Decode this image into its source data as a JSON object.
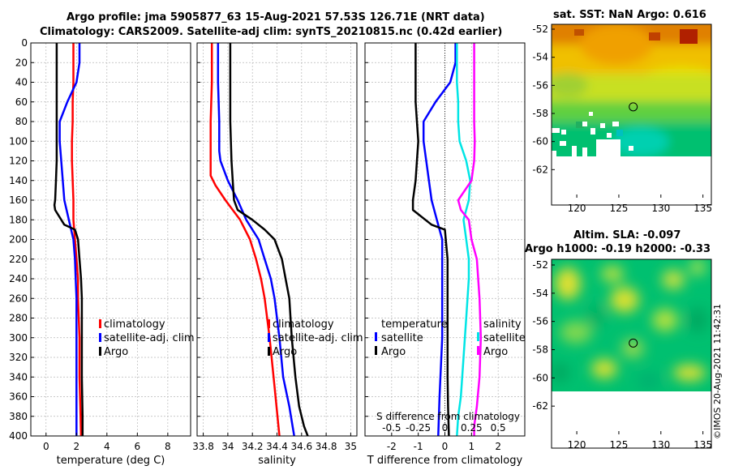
{
  "header": {
    "title_line1": "Argo profile: jma 5905877_63 15-Aug-2021 57.53S 126.71E (NRT data)",
    "title_line2": "Climatology: CARS2009. Satellite-adj clim: synTS_20210815.nc (0.42d earlier)"
  },
  "map_titles": {
    "sst_title": "sat. SST: NaN Argo: 0.616",
    "sla_title_line1": "Altim. SLA: -0.097",
    "sla_title_line2": "Argo h1000: -0.19 h2000: -0.33"
  },
  "stamp": "©IMOS 20-Aug-2021 11:42:31",
  "colors": {
    "climatology": "#ff0000",
    "satellite": "#0000ff",
    "argo": "#000000",
    "salinity_satellite": "#00e5e5",
    "salinity_argo": "#ff00ff"
  },
  "chart_data": [
    {
      "type": "line",
      "name": "temperature",
      "xlabel": "temperature (deg C)",
      "ylabel": "",
      "xlim": [
        -1,
        9.5
      ],
      "ylim": [
        400,
        0
      ],
      "xticks": [
        0,
        2,
        4,
        6,
        8
      ],
      "xtick_labels": [
        "0",
        "2",
        "4",
        "6",
        "8"
      ],
      "yticks": [
        0,
        20,
        40,
        60,
        80,
        100,
        120,
        140,
        160,
        180,
        200,
        220,
        240,
        260,
        280,
        300,
        320,
        340,
        360,
        380,
        400
      ],
      "ytick_labels": [
        "0",
        "20",
        "40",
        "60",
        "80",
        "100",
        "120",
        "140",
        "160",
        "180",
        "200",
        "220",
        "240",
        "260",
        "280",
        "300",
        "320",
        "340",
        "360",
        "380",
        "400"
      ],
      "legend": [
        "climatology",
        "satellite-adj. clim",
        "Argo"
      ],
      "series": [
        {
          "name": "climatology",
          "x": [
            1.8,
            1.8,
            1.8,
            1.75,
            1.75,
            1.7,
            1.7,
            1.75,
            1.8,
            1.8,
            1.9,
            2.0,
            2.1,
            2.1,
            2.2,
            2.2,
            2.25,
            2.3
          ],
          "y": [
            0,
            20,
            40,
            60,
            80,
            100,
            120,
            140,
            160,
            180,
            200,
            220,
            240,
            260,
            300,
            340,
            370,
            400
          ]
        },
        {
          "name": "satellite-adj. clim",
          "x": [
            2.2,
            2.2,
            2.0,
            1.4,
            0.9,
            0.9,
            1.0,
            1.1,
            1.2,
            1.5,
            1.8,
            1.9,
            1.95,
            2.0,
            2.0,
            2.0,
            2.0
          ],
          "y": [
            0,
            20,
            40,
            60,
            80,
            100,
            120,
            140,
            160,
            180,
            200,
            220,
            240,
            260,
            300,
            360,
            400
          ]
        },
        {
          "name": "Argo",
          "x": [
            0.7,
            0.7,
            0.7,
            0.7,
            0.7,
            0.65,
            0.6,
            0.55,
            0.6,
            1.2,
            1.9,
            2.1,
            2.2,
            2.3,
            2.35,
            2.35,
            2.35,
            2.4,
            2.4
          ],
          "y": [
            0,
            20,
            60,
            100,
            120,
            140,
            160,
            165,
            170,
            185,
            190,
            200,
            220,
            240,
            260,
            300,
            340,
            380,
            400
          ]
        }
      ]
    },
    {
      "type": "line",
      "name": "salinity",
      "xlabel": "salinity",
      "ylabel": "",
      "xlim": [
        33.75,
        35.05
      ],
      "ylim": [
        400,
        0
      ],
      "xticks": [
        33.8,
        34,
        34.2,
        34.4,
        34.6,
        34.8,
        35
      ],
      "xtick_labels": [
        "33.8",
        "34",
        "34.2",
        "34.4",
        "34.6",
        "34.8",
        "35"
      ],
      "legend": [
        "climatology",
        "satellite-adj. clim",
        "Argo"
      ],
      "series": [
        {
          "name": "climatology",
          "x": [
            33.87,
            33.87,
            33.86,
            33.86,
            33.86,
            33.86,
            33.86,
            33.9,
            33.98,
            34.1,
            34.18,
            34.23,
            34.27,
            34.3,
            34.34,
            34.38,
            34.42
          ],
          "y": [
            0,
            40,
            80,
            100,
            120,
            130,
            135,
            145,
            160,
            180,
            200,
            220,
            240,
            260,
            300,
            350,
            400
          ]
        },
        {
          "name": "satellite-adj. clim",
          "x": [
            33.92,
            33.92,
            33.93,
            33.93,
            33.93,
            33.94,
            34.0,
            34.08,
            34.15,
            34.25,
            34.3,
            34.35,
            34.38,
            34.42,
            34.45,
            34.5,
            34.54
          ],
          "y": [
            0,
            40,
            80,
            100,
            110,
            120,
            140,
            160,
            180,
            200,
            220,
            240,
            260,
            300,
            340,
            370,
            400
          ]
        },
        {
          "name": "Argo",
          "x": [
            34.02,
            34.02,
            34.02,
            34.03,
            34.04,
            34.05,
            34.08,
            34.2,
            34.3,
            34.38,
            34.44,
            34.47,
            34.5,
            34.52,
            34.55,
            34.58,
            34.62,
            34.65
          ],
          "y": [
            0,
            40,
            80,
            120,
            140,
            160,
            170,
            180,
            190,
            200,
            220,
            240,
            260,
            300,
            340,
            370,
            390,
            400
          ]
        }
      ]
    },
    {
      "type": "line",
      "name": "difference",
      "xlabel": "T difference from climatology",
      "xlabel_top": "S difference from climatology",
      "ylabel": "",
      "xlim": [
        -3,
        3
      ],
      "ylim": [
        400,
        0
      ],
      "xticks": [
        -2,
        -1,
        0,
        1,
        2
      ],
      "xtick_labels": [
        "-2",
        "-1",
        "0",
        "1",
        "2"
      ],
      "s_xticks": [
        -2,
        -1,
        0,
        1,
        2
      ],
      "s_xtick_labels": [
        "-0.5",
        "-0.25",
        "0",
        "0.25",
        "0.5"
      ],
      "legend_temperature": [
        "temperature",
        "satellite",
        "Argo"
      ],
      "legend_salinity": [
        "salinity",
        "satellite",
        "Argo"
      ],
      "series": [
        {
          "name": "temperature satellite",
          "x": [
            0.4,
            0.4,
            0.2,
            -0.35,
            -0.8,
            -0.8,
            -0.7,
            -0.6,
            -0.5,
            -0.3,
            -0.1,
            -0.1,
            -0.1,
            -0.1,
            -0.1,
            -0.2,
            -0.25
          ],
          "y": [
            0,
            20,
            40,
            60,
            80,
            100,
            120,
            140,
            160,
            180,
            200,
            220,
            240,
            260,
            300,
            360,
            400
          ]
        },
        {
          "name": "temperature Argo",
          "x": [
            -1.1,
            -1.1,
            -1.1,
            -1.05,
            -1.0,
            -1.05,
            -1.1,
            -1.2,
            -1.2,
            -0.5,
            0.0,
            0.1,
            0.1,
            0.1,
            0.1,
            0.12,
            0.15
          ],
          "y": [
            0,
            20,
            60,
            80,
            100,
            120,
            140,
            160,
            170,
            185,
            190,
            220,
            260,
            300,
            340,
            370,
            400
          ]
        },
        {
          "name": "salinity satellite",
          "x": [
            0.45,
            0.45,
            0.5,
            0.5,
            0.55,
            0.8,
            0.95,
            0.9,
            0.7,
            0.8,
            0.9,
            0.9,
            0.8,
            0.7,
            0.6,
            0.5,
            0.45
          ],
          "y": [
            0,
            40,
            60,
            80,
            100,
            120,
            140,
            160,
            180,
            200,
            220,
            240,
            280,
            320,
            360,
            380,
            400
          ]
        },
        {
          "name": "salinity Argo",
          "x": [
            1.1,
            1.1,
            1.1,
            1.12,
            1.1,
            1.0,
            0.5,
            0.6,
            0.9,
            1.0,
            1.2,
            1.3,
            1.35,
            1.3,
            1.2,
            1.1,
            1.1
          ],
          "y": [
            0,
            40,
            80,
            100,
            120,
            140,
            160,
            170,
            180,
            200,
            220,
            260,
            300,
            340,
            370,
            390,
            400
          ]
        }
      ]
    },
    {
      "type": "heatmap",
      "name": "sst_map",
      "title": "sat. SST: NaN Argo: 0.616",
      "xlim": [
        117,
        136
      ],
      "ylim": [
        -64,
        -52
      ],
      "xticks": [
        120,
        125,
        130,
        135
      ],
      "xtick_labels": [
        "120",
        "125",
        "130",
        "135"
      ],
      "yticks": [
        -52,
        -54,
        -56,
        -58,
        -60,
        -62
      ],
      "ytick_labels": [
        "-52",
        "-54",
        "-56",
        "-58",
        "-60",
        "-62"
      ],
      "argo_marker": {
        "lon": 126.71,
        "lat": -57.53
      }
    },
    {
      "type": "heatmap",
      "name": "sla_map",
      "title": "Altim. SLA: -0.097",
      "xlim": [
        117,
        136
      ],
      "ylim": [
        -64,
        -52
      ],
      "xticks": [
        120,
        125,
        130,
        135
      ],
      "xtick_labels": [
        "120",
        "125",
        "130",
        "135"
      ],
      "yticks": [
        -52,
        -54,
        -56,
        -58,
        -60,
        -62
      ],
      "ytick_labels": [
        "-52",
        "-54",
        "-56",
        "-58",
        "-60",
        "-62"
      ],
      "argo_marker": {
        "lon": 126.71,
        "lat": -57.53
      }
    }
  ]
}
